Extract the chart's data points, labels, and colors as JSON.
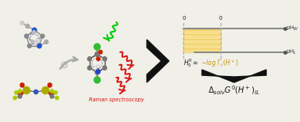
{
  "bg_color": "#f0efe8",
  "text_black": "#111111",
  "text_gold": "#c8940a",
  "text_red": "#dd1111",
  "gold_fill": "#f5c842",
  "gold_alpha": 0.75,
  "line_gray": "#888888",
  "dash_gray": "#aaaaaa",
  "ph_w_label": "pH$_W$",
  "ph_il_label": "pH$_L$",
  "zero_label": "0",
  "raman_label": "Raman spectroscopy",
  "h0_black": "$H_0^0=$",
  "h0_gold": "$-log\\ \\Gamma_t(H^+)$",
  "delta_formula": "$\\Delta_{solv}G^0(H^+)_{IL}$"
}
